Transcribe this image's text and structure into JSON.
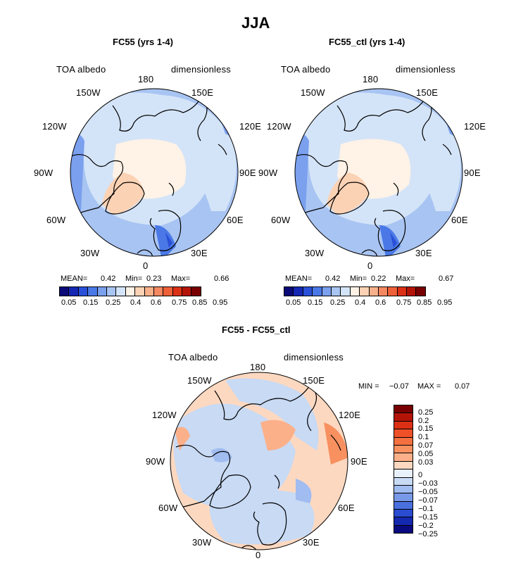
{
  "figure": {
    "title": "JJA"
  },
  "panels": [
    {
      "id": "p1",
      "subtitle": "FC55 (yrs 1-4)",
      "left_label": "TOA albedo",
      "right_label": "dimensionless",
      "mean_label": "MEAN=",
      "mean": "0.42",
      "min_label": "Min=",
      "min": "0.23",
      "max_label": "Max=",
      "max": "0.66"
    },
    {
      "id": "p2",
      "subtitle": "FC55_ctl (yrs 1-4)",
      "left_label": "TOA albedo",
      "right_label": "dimensionless",
      "mean_label": "MEAN=",
      "mean": "0.42",
      "min_label": "Min=",
      "min": "0.22",
      "max_label": "Max=",
      "max": "0.67"
    },
    {
      "id": "p3",
      "subtitle": "FC55 - FC55_ctl",
      "left_label": "TOA albedo",
      "right_label": "dimensionless",
      "min_label": "MIN =",
      "min": "−0.07",
      "max_label": "MAX =",
      "max": "0.07"
    }
  ],
  "lon_labels": {
    "n": "180",
    "nw": "150W",
    "ne": "150E",
    "wnw": "120W",
    "ene": "120E",
    "w": "90W",
    "e": "90E",
    "wsw": "60W",
    "ese": "60E",
    "sw": "30W",
    "se": "30E",
    "s": "0"
  },
  "colorbar_abs": {
    "colors": [
      "#0a0a78",
      "#1428b4",
      "#2a50d8",
      "#4a78e6",
      "#7aa0ee",
      "#a8c4f2",
      "#d4e4f8",
      "#fff2e6",
      "#fcd2b4",
      "#f8b08a",
      "#f48860",
      "#ee6038",
      "#dc3014",
      "#b41408",
      "#780000"
    ],
    "ticks": [
      "0.05",
      "0.15",
      "0.25",
      "0.4",
      "0.6",
      "0.75",
      "0.85",
      "0.95"
    ]
  },
  "colorbar_diff": {
    "colors": [
      "#780000",
      "#b41408",
      "#dc3014",
      "#ee5028",
      "#f47040",
      "#f89060",
      "#fcb08a",
      "#fdd8c0",
      "#e8f0fa",
      "#c8daf4",
      "#a0bcf0",
      "#7898e8",
      "#4a70e0",
      "#2a4cd0",
      "#1428b0",
      "#0a0a80"
    ],
    "ticks": [
      "0.25",
      "0.2",
      "0.15",
      "0.1",
      "0.07",
      "0.05",
      "0.03",
      "0",
      "−0.03",
      "−0.05",
      "−0.07",
      "−0.1",
      "−0.15",
      "−0.2",
      "−0.25"
    ]
  }
}
